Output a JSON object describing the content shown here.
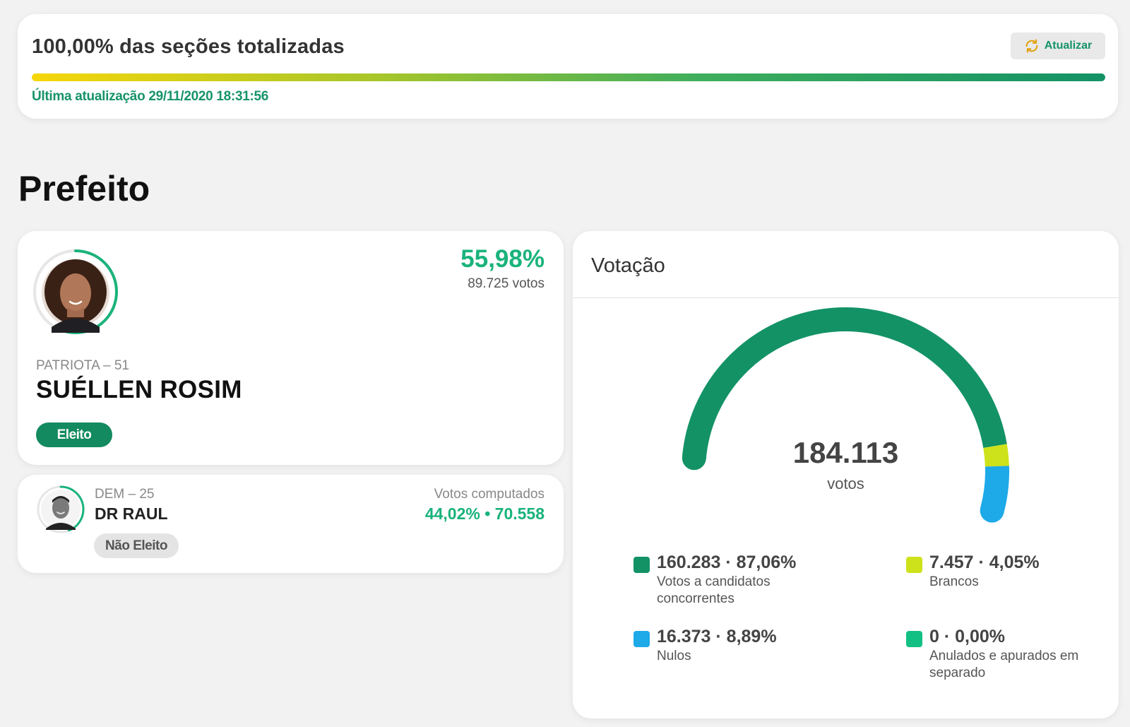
{
  "status": {
    "title": "100,00% das seções totalizadas",
    "progress_percent": 100,
    "last_update": "Última atualização 29/11/2020 18:31:56",
    "refresh_label": "Atualizar",
    "accent_color": "#17936a"
  },
  "section_title": "Prefeito",
  "winner": {
    "party": "PATRIOTA – 51",
    "name": "SUÉLLEN ROSIM",
    "percent": "55,98%",
    "votes": "89.725 votos",
    "badge": "Eleito",
    "progress_fraction": 0.5598
  },
  "runner_up": {
    "party": "DEM – 25",
    "name": "DR RAUL",
    "badge": "Não Eleito",
    "computed_label": "Votos computados",
    "stats": "44,02%  •  70.558",
    "progress_fraction": 0.4402
  },
  "voting": {
    "title": "Votação",
    "total": "184.113",
    "unit": "votos",
    "legend": [
      {
        "value": "160.283 · 87,06%",
        "label": "Votos a candidatos concorrentes",
        "color": "#139266",
        "fraction": 0.8706
      },
      {
        "value": "7.457 · 4,05%",
        "label": "Brancos",
        "color": "#cde21a",
        "fraction": 0.0405
      },
      {
        "value": "16.373 · 8,89%",
        "label": "Nulos",
        "color": "#1ea9e8",
        "fraction": 0.0889
      },
      {
        "value": "0 · 0,00%",
        "label": "Anulados e apurados em separado",
        "color": "#13c083",
        "fraction": 0.0
      }
    ]
  }
}
